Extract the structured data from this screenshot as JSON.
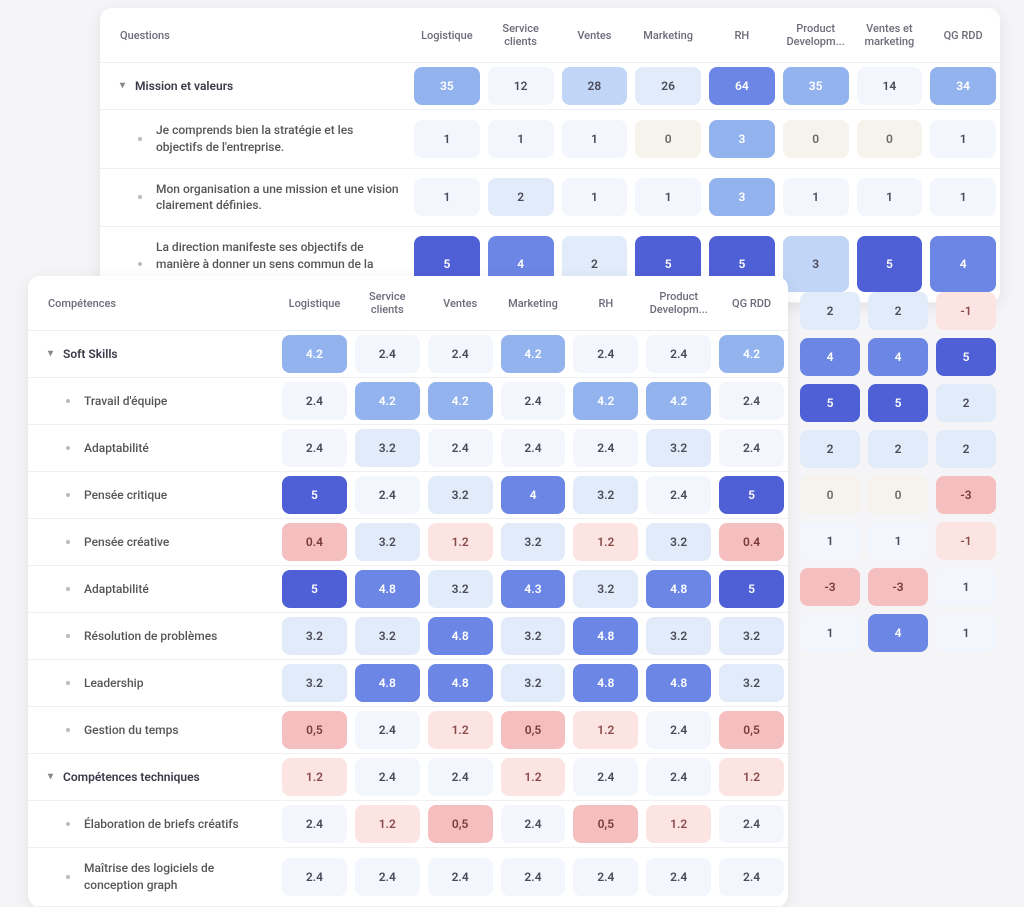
{
  "back": {
    "header_label": "Questions",
    "columns": [
      "Logistique",
      "Service clients",
      "Ventes",
      "Marketing",
      "RH",
      "Product Developm...",
      "Ventes et marketing",
      "QG RDD"
    ],
    "rows": [
      {
        "label": "Mission et valeurs",
        "kind": "group",
        "values": [
          "35",
          "12",
          "28",
          "26",
          "64",
          "35",
          "14",
          "34"
        ],
        "colors": [
          "c-b3",
          "c-b0",
          "c-b2",
          "c-b1",
          "c-b4",
          "c-b3",
          "c-b0",
          "c-b3"
        ]
      },
      {
        "label": "Je comprends bien la stratégie et les objectifs de l'entreprise.",
        "kind": "sub",
        "values": [
          "1",
          "1",
          "1",
          "0",
          "3",
          "0",
          "0",
          "1"
        ],
        "colors": [
          "c-b0",
          "c-b0",
          "c-b0",
          "c-n",
          "c-b3",
          "c-n",
          "c-n",
          "c-b0"
        ]
      },
      {
        "label": "Mon organisation a une mission et une vision clairement définies.",
        "kind": "sub",
        "values": [
          "1",
          "2",
          "1",
          "1",
          "3",
          "1",
          "1",
          "1"
        ],
        "colors": [
          "c-b0",
          "c-b1",
          "c-b0",
          "c-b0",
          "c-b3",
          "c-b0",
          "c-b0",
          "c-b0"
        ]
      },
      {
        "label": "La direction manifeste ses objectifs de manière à donner un sens commun de la mission et de l'identité parmi ses membres.",
        "kind": "sub",
        "tall": true,
        "values": [
          "5",
          "4",
          "2",
          "5",
          "5",
          "3",
          "5",
          "4"
        ],
        "colors": [
          "c-b5",
          "c-b4",
          "c-b1",
          "c-b5",
          "c-b5",
          "c-b2",
          "c-b5",
          "c-b4"
        ]
      }
    ],
    "peek_rows": [
      {
        "values": [
          "2",
          "2",
          "-1"
        ],
        "colors": [
          "c-b1",
          "c-b1",
          "c-r1"
        ]
      },
      {
        "values": [
          "4",
          "4",
          "5"
        ],
        "colors": [
          "c-b4",
          "c-b4",
          "c-b5"
        ]
      },
      {
        "values": [
          "5",
          "5",
          "2"
        ],
        "colors": [
          "c-b5",
          "c-b5",
          "c-b1"
        ]
      },
      {
        "values": [
          "2",
          "2",
          "2"
        ],
        "colors": [
          "c-b1",
          "c-b1",
          "c-b1"
        ]
      },
      {
        "values": [
          "0",
          "0",
          "-3"
        ],
        "colors": [
          "c-n",
          "c-n",
          "c-r2"
        ]
      },
      {
        "values": [
          "1",
          "1",
          "-1"
        ],
        "colors": [
          "c-b0",
          "c-b0",
          "c-r1"
        ]
      },
      {
        "values": [
          "-3",
          "-3",
          "1"
        ],
        "colors": [
          "c-r2",
          "c-r2",
          "c-b0"
        ]
      },
      {
        "values": [
          "1",
          "4",
          "1"
        ],
        "colors": [
          "c-b0",
          "c-b4",
          "c-b0"
        ]
      }
    ]
  },
  "front": {
    "header_label": "Compétences",
    "columns": [
      "Logistique",
      "Service clients",
      "Ventes",
      "Marketing",
      "RH",
      "Product Developm...",
      "QG RDD"
    ],
    "rows": [
      {
        "label": "Soft Skills",
        "kind": "group",
        "values": [
          "4.2",
          "2.4",
          "2.4",
          "4.2",
          "2.4",
          "2.4",
          "4.2"
        ],
        "colors": [
          "c-b3",
          "c-b0",
          "c-b0",
          "c-b3",
          "c-b0",
          "c-b0",
          "c-b3"
        ]
      },
      {
        "label": "Travail d'équipe",
        "kind": "sub",
        "values": [
          "2.4",
          "4.2",
          "4.2",
          "2.4",
          "4.2",
          "4.2",
          "2.4"
        ],
        "colors": [
          "c-b0",
          "c-b3",
          "c-b3",
          "c-b0",
          "c-b3",
          "c-b3",
          "c-b0"
        ]
      },
      {
        "label": "Adaptabilité",
        "kind": "sub",
        "values": [
          "2.4",
          "3.2",
          "2.4",
          "2.4",
          "2.4",
          "3.2",
          "2.4"
        ],
        "colors": [
          "c-b0",
          "c-b1",
          "c-b0",
          "c-b0",
          "c-b0",
          "c-b1",
          "c-b0"
        ]
      },
      {
        "label": "Pensée critique",
        "kind": "sub",
        "values": [
          "5",
          "2.4",
          "3.2",
          "4",
          "3.2",
          "2.4",
          "5"
        ],
        "colors": [
          "c-b5",
          "c-b0",
          "c-b1",
          "c-b4",
          "c-b1",
          "c-b0",
          "c-b5"
        ]
      },
      {
        "label": "Pensée créative",
        "kind": "sub",
        "values": [
          "0.4",
          "3.2",
          "1.2",
          "3.2",
          "1.2",
          "3.2",
          "0.4"
        ],
        "colors": [
          "c-r2",
          "c-b1",
          "c-r1",
          "c-b1",
          "c-r1",
          "c-b1",
          "c-r2"
        ]
      },
      {
        "label": "Adaptabilité",
        "kind": "sub",
        "values": [
          "5",
          "4.8",
          "3.2",
          "4.3",
          "3.2",
          "4.8",
          "5"
        ],
        "colors": [
          "c-b5",
          "c-b4",
          "c-b1",
          "c-b4",
          "c-b1",
          "c-b4",
          "c-b5"
        ]
      },
      {
        "label": "Résolution de problèmes",
        "kind": "sub",
        "values": [
          "3.2",
          "3.2",
          "4.8",
          "3.2",
          "4.8",
          "3.2",
          "3.2"
        ],
        "colors": [
          "c-b1",
          "c-b1",
          "c-b4",
          "c-b1",
          "c-b4",
          "c-b1",
          "c-b1"
        ]
      },
      {
        "label": "Leadership",
        "kind": "sub",
        "values": [
          "3.2",
          "4.8",
          "4.8",
          "3.2",
          "4.8",
          "4.8",
          "3.2"
        ],
        "colors": [
          "c-b1",
          "c-b4",
          "c-b4",
          "c-b1",
          "c-b4",
          "c-b4",
          "c-b1"
        ]
      },
      {
        "label": "Gestion du temps",
        "kind": "sub",
        "values": [
          "0,5",
          "2.4",
          "1.2",
          "0,5",
          "1.2",
          "2.4",
          "0,5"
        ],
        "colors": [
          "c-r2",
          "c-b0",
          "c-r1",
          "c-r2",
          "c-r1",
          "c-b0",
          "c-r2"
        ]
      },
      {
        "label": "Compétences techniques",
        "kind": "group",
        "values": [
          "1.2",
          "2.4",
          "2.4",
          "1.2",
          "2.4",
          "2.4",
          "1.2"
        ],
        "colors": [
          "c-r1",
          "c-b0",
          "c-b0",
          "c-r1",
          "c-b0",
          "c-b0",
          "c-r1"
        ]
      },
      {
        "label": "Élaboration de briefs créatifs",
        "kind": "sub",
        "values": [
          "2.4",
          "1.2",
          "0,5",
          "2.4",
          "0,5",
          "1.2",
          "2.4"
        ],
        "colors": [
          "c-b0",
          "c-r1",
          "c-r2",
          "c-b0",
          "c-r2",
          "c-r1",
          "c-b0"
        ]
      },
      {
        "label": "Maîtrise des logiciels de conception graph",
        "kind": "sub",
        "values": [
          "2.4",
          "2.4",
          "2.4",
          "2.4",
          "2.4",
          "2.4",
          "2.4"
        ],
        "colors": [
          "c-b0",
          "c-b0",
          "c-b0",
          "c-b0",
          "c-b0",
          "c-b0",
          "c-b0"
        ]
      }
    ]
  }
}
